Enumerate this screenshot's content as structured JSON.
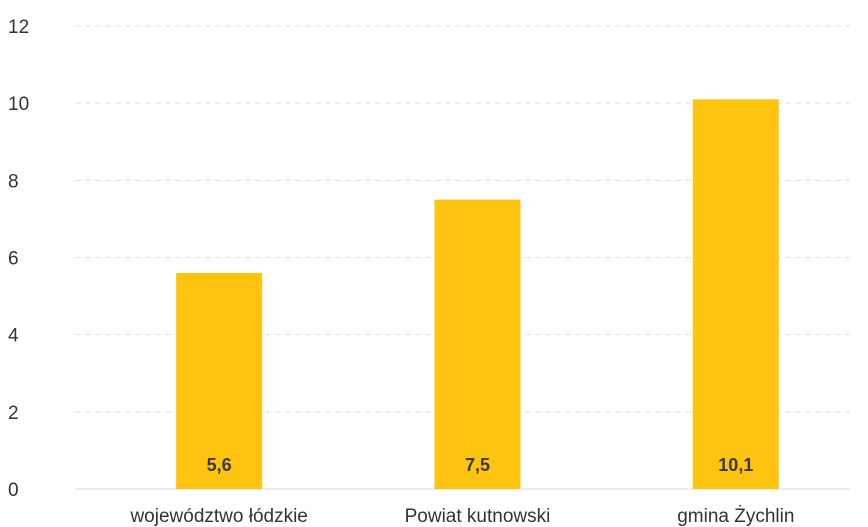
{
  "chart_data": {
    "type": "bar",
    "categories": [
      "województwo łódzkie",
      "Powiat kutnowski",
      "gmina Żychlin"
    ],
    "values": [
      5.6,
      7.5,
      10.1
    ],
    "data_labels": [
      "5,6",
      "7,5",
      "10,1"
    ],
    "title": "",
    "xlabel": "",
    "ylabel": "",
    "ylim": [
      0,
      12
    ],
    "yticks": [
      0,
      2,
      4,
      6,
      8,
      10,
      12
    ],
    "grid": true,
    "bar_color": "#FFC410",
    "grid_color": "#e3e3e3"
  }
}
